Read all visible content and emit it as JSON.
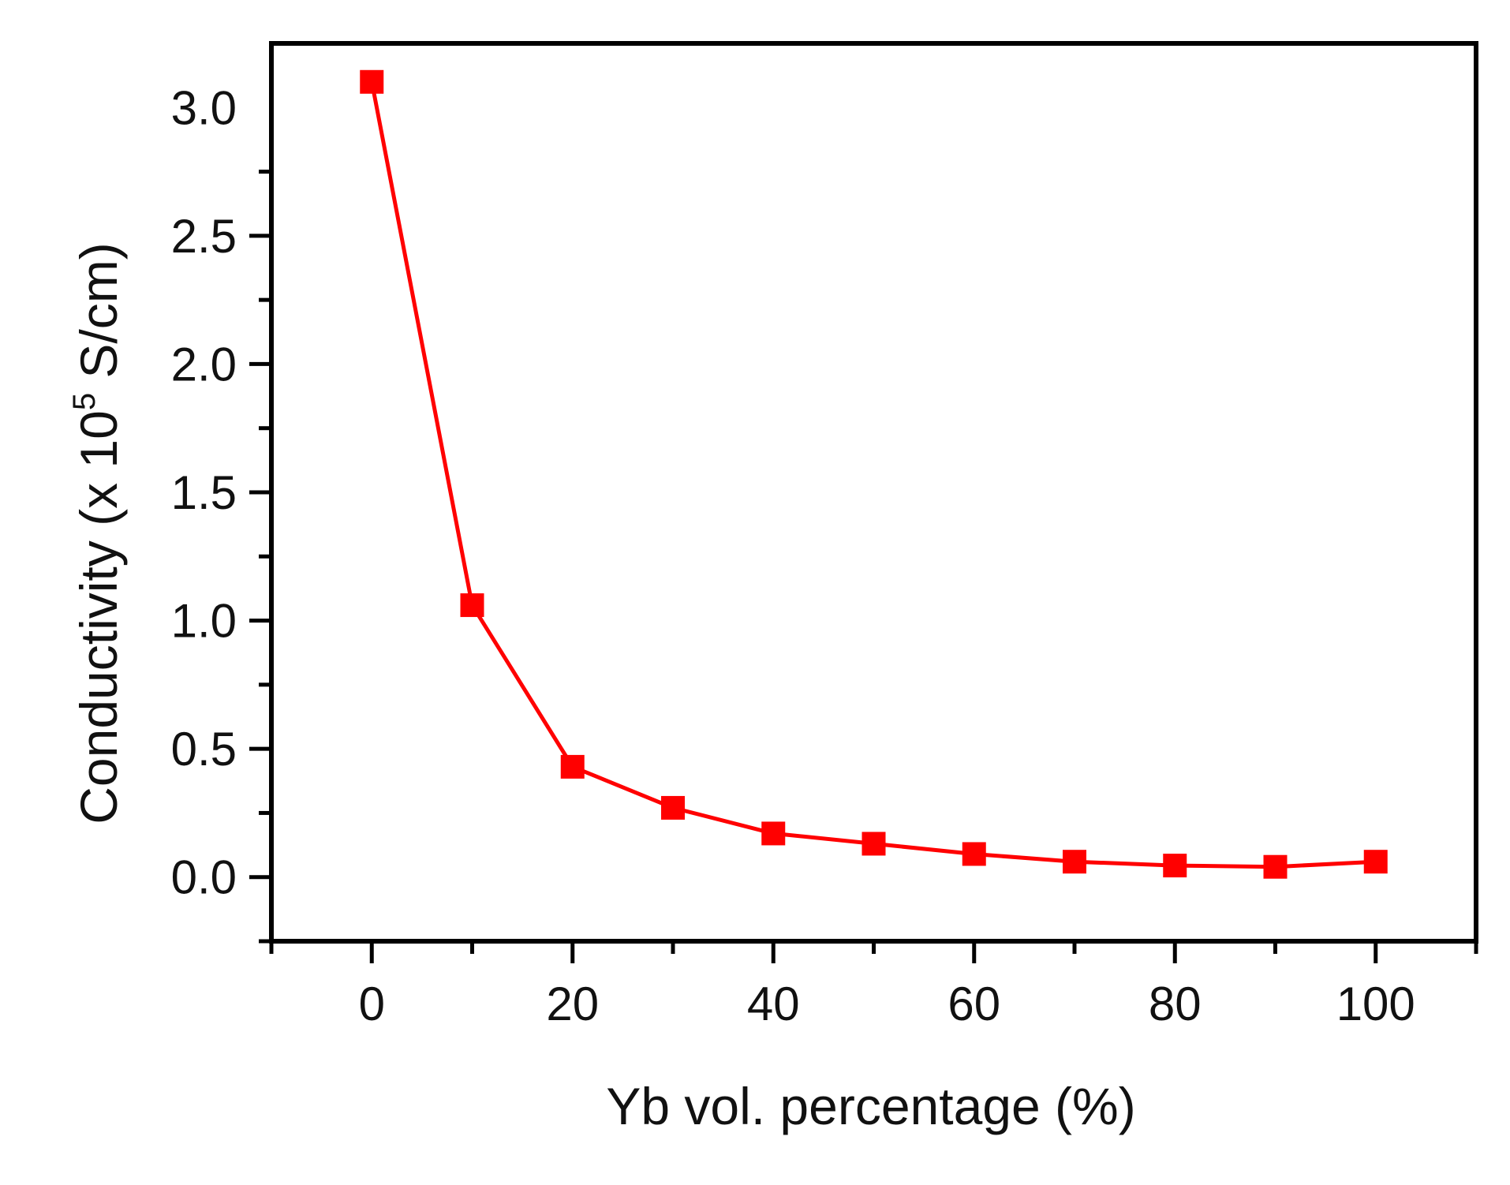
{
  "chart_data": {
    "type": "line",
    "title": "",
    "xlabel": "Yb vol. percentage (%)",
    "ylabel": {
      "prefix": "Conductivity (x 10",
      "superscript": "5",
      "suffix": " S/cm)"
    },
    "xlim": [
      -10,
      110
    ],
    "ylim": [
      -0.25,
      3.25
    ],
    "xticks": [
      0,
      20,
      40,
      60,
      80,
      100
    ],
    "xtick_labels": [
      "0",
      "20",
      "40",
      "60",
      "80",
      "100"
    ],
    "yticks": [
      0.0,
      0.5,
      1.0,
      1.5,
      2.0,
      2.5,
      3.0
    ],
    "ytick_labels": [
      "0.0",
      "0.5",
      "1.0",
      "1.5",
      "2.0",
      "2.5",
      "3.0"
    ],
    "grid": false,
    "series": [
      {
        "name": "Conductivity",
        "color": "#ff0000",
        "marker": "square",
        "x": [
          0,
          10,
          20,
          30,
          40,
          50,
          60,
          70,
          80,
          90,
          100
        ],
        "y": [
          3.1,
          1.06,
          0.43,
          0.27,
          0.17,
          0.13,
          0.09,
          0.06,
          0.045,
          0.04,
          0.06
        ]
      }
    ]
  }
}
